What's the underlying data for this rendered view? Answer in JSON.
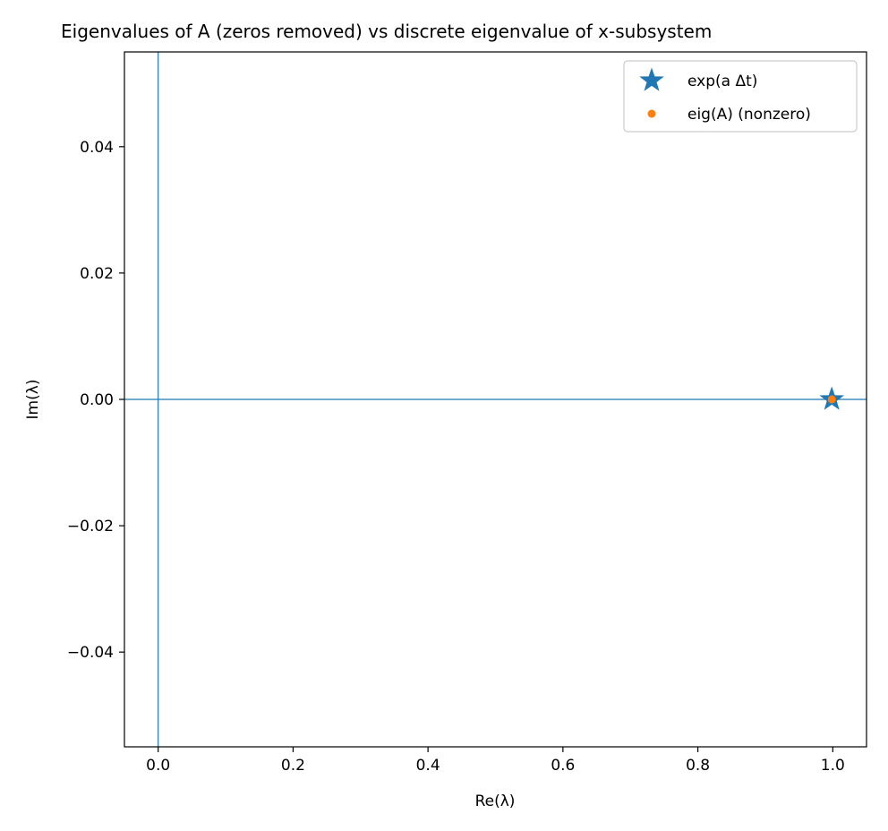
{
  "chart_data": {
    "type": "scatter",
    "title": "Eigenvalues of A (zeros removed) vs discrete eigenvalue of x-subsystem",
    "xlabel": "Re(λ)",
    "ylabel": "Im(λ)",
    "xlim": [
      -0.05,
      1.05
    ],
    "ylim": [
      -0.055,
      0.055
    ],
    "xticks": [
      0.0,
      0.2,
      0.4,
      0.6,
      0.8,
      1.0
    ],
    "xtick_labels": [
      "0.0",
      "0.2",
      "0.4",
      "0.6",
      "0.8",
      "1.0"
    ],
    "yticks": [
      -0.04,
      -0.02,
      0.0,
      0.02,
      0.04
    ],
    "ytick_labels": [
      "−0.04",
      "−0.02",
      "0.00",
      "0.02",
      "0.04"
    ],
    "grid": false,
    "legend": "top-right",
    "reference_lines": {
      "x": 0,
      "y": 0,
      "color": "#1f77b4"
    },
    "series": [
      {
        "name": "exp(a Δt)",
        "marker": "star",
        "color": "#1f77b4",
        "x": [
          0.9985
        ],
        "y": [
          0.0
        ]
      },
      {
        "name": "eig(A) (nonzero)",
        "marker": "circle",
        "color": "#ff7f0e",
        "x": [
          0.9985
        ],
        "y": [
          0.0
        ]
      }
    ]
  }
}
